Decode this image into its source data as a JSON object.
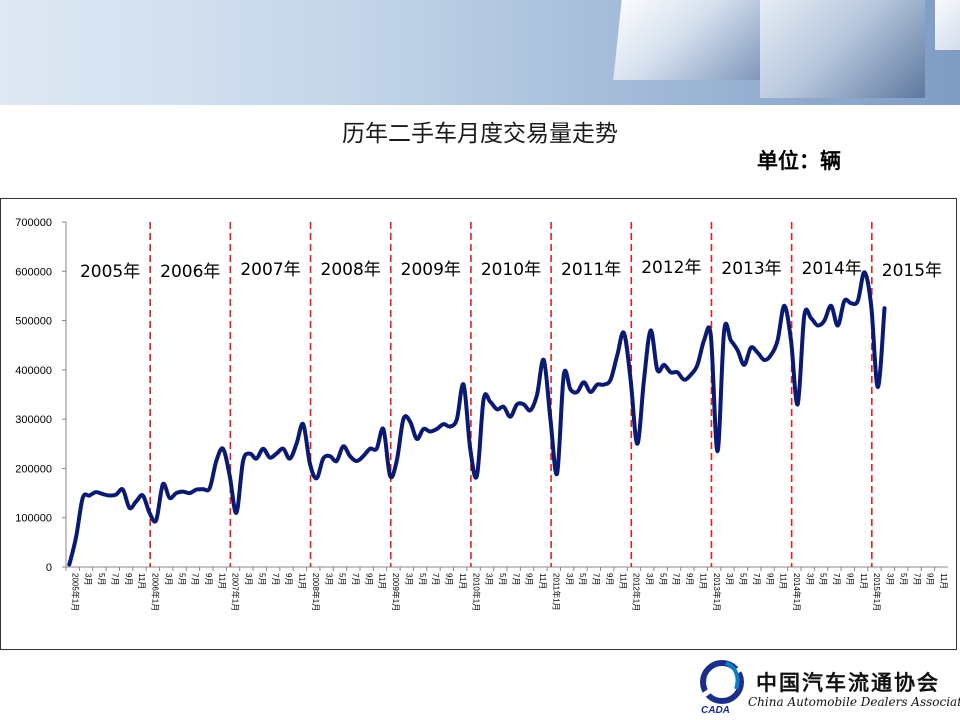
{
  "page": {
    "title": "历年二手车月度交易量走势",
    "unit_label": "单位：辆",
    "logo_cn": "中国汽车流通协会",
    "logo_en": "China Automobile Dealers Association",
    "logo_abbr": "CADA"
  },
  "chart_data": {
    "type": "line",
    "title": "历年二手车月度交易量走势",
    "ylabel": "",
    "ylim": [
      0,
      700000
    ],
    "yticks": [
      "0",
      "100000",
      "200000",
      "300000",
      "400000",
      "500000",
      "600000",
      "700000"
    ],
    "x_tick_year_labels": [
      "2005年1月",
      "2006年1月",
      "2007年1月",
      "2008年1月",
      "2009年1月",
      "2010年1月",
      "2011年1月",
      "2012年1月",
      "2013年1月",
      "2014年1月",
      "2015年1月"
    ],
    "x_tick_month_labels": [
      "3月",
      "5月",
      "7月",
      "9月",
      "11月"
    ],
    "year_labels": [
      "2005年",
      "2006年",
      "2007年",
      "2008年",
      "2009年",
      "2010年",
      "2011年",
      "2012年",
      "2013年",
      "2014年",
      "2015年"
    ],
    "divider_color": "#e02020",
    "line_color": "#0a1a72",
    "months_on_axis": 132,
    "series": [
      {
        "values": [
          5000,
          60000,
          140000,
          145000,
          152000,
          148000,
          145000,
          147000,
          157000,
          120000,
          133000,
          145000,
          110000,
          95000,
          168000,
          140000,
          150000,
          153000,
          150000,
          157000,
          158000,
          160000,
          215000,
          240000,
          185000,
          110000,
          215000,
          230000,
          220000,
          240000,
          222000,
          230000,
          240000,
          220000,
          250000,
          290000,
          210000,
          180000,
          220000,
          225000,
          215000,
          245000,
          225000,
          215000,
          225000,
          240000,
          240000,
          280000,
          185000,
          215000,
          300000,
          295000,
          260000,
          280000,
          275000,
          280000,
          290000,
          285000,
          300000,
          370000,
          240000,
          185000,
          340000,
          335000,
          320000,
          325000,
          305000,
          330000,
          330000,
          318000,
          350000,
          420000,
          300000,
          190000,
          390000,
          360000,
          355000,
          375000,
          355000,
          370000,
          370000,
          380000,
          430000,
          475000,
          380000,
          250000,
          380000,
          480000,
          400000,
          410000,
          395000,
          395000,
          380000,
          390000,
          410000,
          460000,
          470000,
          235000,
          480000,
          460000,
          440000,
          410000,
          445000,
          435000,
          420000,
          430000,
          460000,
          530000,
          460000,
          330000,
          510000,
          505000,
          490000,
          500000,
          530000,
          490000,
          540000,
          535000,
          540000,
          598000,
          530000,
          365000,
          525000
        ]
      }
    ]
  }
}
